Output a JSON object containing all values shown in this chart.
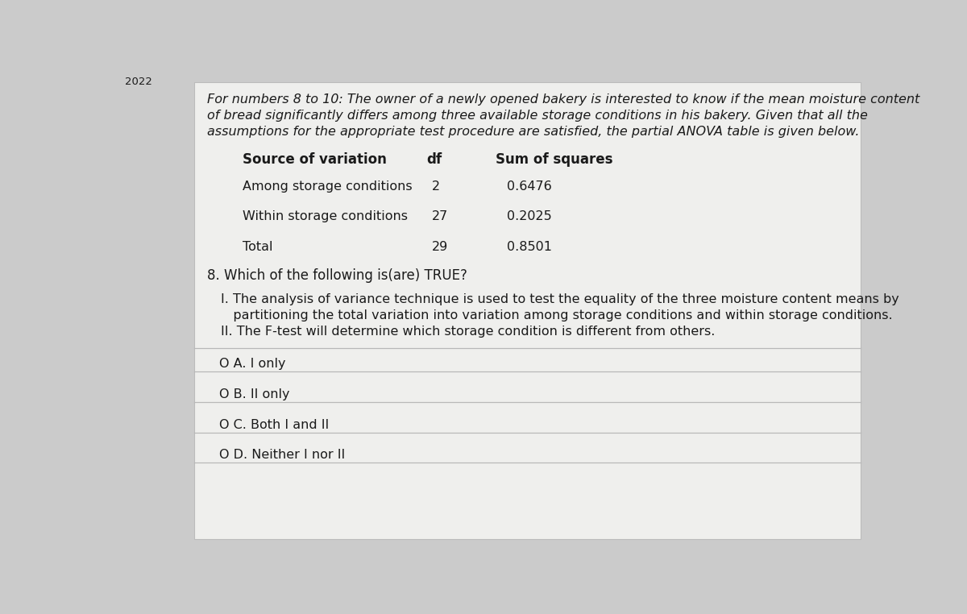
{
  "year": "2022",
  "intro_line1": "For numbers 8 to 10: The owner of a newly opened bakery is interested to know if the mean moisture content",
  "intro_line2": "of bread significantly differs among three available storage conditions in his bakery. Given that all the",
  "intro_line3": "assumptions for the appropriate test procedure are satisfied, the partial ANOVA table is given below.",
  "table_headers": [
    "Source of variation",
    "df",
    "Sum of squares"
  ],
  "table_rows": [
    [
      "Among storage conditions",
      "2",
      "0.6476"
    ],
    [
      "Within storage conditions",
      "27",
      "0.2025"
    ],
    [
      "Total",
      "29",
      "0.8501"
    ]
  ],
  "question_text": "8. Which of the following is(are) TRUE?",
  "statement_I_a": "I. The analysis of variance technique is used to test the equality of the three moisture content means by",
  "statement_I_b": "   partitioning the total variation into variation among storage conditions and within storage conditions.",
  "statement_II": "II. The F-test will determine which storage condition is different from others.",
  "choices": [
    "O A. I only",
    "O B. II only",
    "O C. Both I and II",
    "O D. Neither I nor II"
  ],
  "bg_color": "#cbcbcb",
  "panel_color": "#efefed",
  "text_color": "#1a1a1a",
  "line_color": "#b8b8b8"
}
